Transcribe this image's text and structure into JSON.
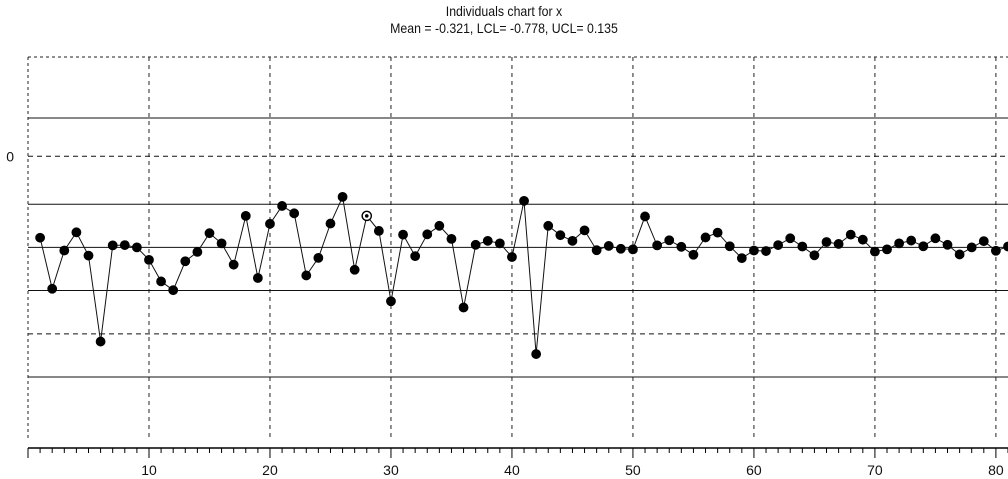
{
  "chart_data": {
    "type": "line",
    "title": "Individuals chart for x",
    "subtitle": "Mean = -0.321, LCL= -0.778, UCL= 0.135",
    "xlabel": "",
    "ylabel": "",
    "xlim": [
      0,
      81
    ],
    "ylim": [
      -1.0,
      0.35
    ],
    "grid": true,
    "x_ticks": [
      10,
      20,
      30,
      40,
      50,
      60,
      70,
      80
    ],
    "y_ticks": [
      0
    ],
    "mean": -0.321,
    "lcl": -0.778,
    "ucl": 0.135,
    "reference_lines": [
      {
        "value": 0.135,
        "style": "solid"
      },
      {
        "value": 0.0,
        "style": "dashed"
      },
      {
        "value": -0.169,
        "style": "solid"
      },
      {
        "value": -0.321,
        "style": "solid"
      },
      {
        "value": -0.473,
        "style": "solid"
      },
      {
        "value": -0.626,
        "style": "dashed"
      },
      {
        "value": -0.778,
        "style": "solid"
      }
    ],
    "x": [
      1,
      2,
      3,
      4,
      5,
      6,
      7,
      8,
      9,
      10,
      11,
      12,
      13,
      14,
      15,
      16,
      17,
      18,
      19,
      20,
      21,
      22,
      23,
      24,
      25,
      26,
      27,
      28,
      29,
      30,
      31,
      32,
      33,
      34,
      35,
      36,
      37,
      38,
      39,
      40,
      41,
      42,
      43,
      44,
      45,
      46,
      47,
      48,
      49,
      50,
      51,
      52,
      53,
      54,
      55,
      56,
      57,
      58,
      59,
      60,
      61,
      62,
      63,
      64,
      65,
      66,
      67,
      68,
      69,
      70,
      71,
      72,
      73,
      74,
      75,
      76,
      77,
      78,
      79,
      80,
      81
    ],
    "y": [
      -0.287,
      -0.467,
      -0.332,
      -0.268,
      -0.35,
      -0.653,
      -0.314,
      -0.313,
      -0.321,
      -0.365,
      -0.441,
      -0.472,
      -0.37,
      -0.337,
      -0.271,
      -0.307,
      -0.382,
      -0.21,
      -0.429,
      -0.238,
      -0.175,
      -0.201,
      -0.42,
      -0.358,
      -0.237,
      -0.143,
      -0.4,
      -0.21,
      -0.263,
      -0.511,
      -0.276,
      -0.352,
      -0.275,
      -0.245,
      -0.291,
      -0.533,
      -0.312,
      -0.298,
      -0.307,
      -0.355,
      -0.157,
      -0.697,
      -0.245,
      -0.278,
      -0.298,
      -0.261,
      -0.331,
      -0.316,
      -0.326,
      -0.328,
      -0.212,
      -0.314,
      -0.296,
      -0.319,
      -0.347,
      -0.286,
      -0.269,
      -0.317,
      -0.359,
      -0.332,
      -0.334,
      -0.313,
      -0.289,
      -0.318,
      -0.349,
      -0.302,
      -0.309,
      -0.276,
      -0.294,
      -0.336,
      -0.328,
      -0.307,
      -0.297,
      -0.317,
      -0.289,
      -0.312,
      -0.346,
      -0.321,
      -0.299,
      -0.333,
      -0.318
    ],
    "highlight_point": {
      "x": 28,
      "style": "open"
    }
  }
}
